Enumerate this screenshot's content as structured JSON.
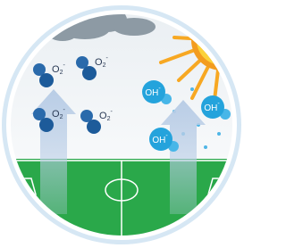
{
  "superoxide": [
    {
      "formula": "O",
      "subscript": "2",
      "charge": "-"
    },
    {
      "formula": "O",
      "subscript": "2",
      "charge": "-"
    },
    {
      "formula": "O",
      "subscript": "2",
      "charge": "-"
    },
    {
      "formula": "O",
      "subscript": "2",
      "charge": "-"
    }
  ],
  "hydroxyl": [
    {
      "formula": "OH",
      "charge": "-"
    },
    {
      "formula": "OH",
      "charge": "-"
    },
    {
      "formula": "OH",
      "charge": "-"
    }
  ]
}
